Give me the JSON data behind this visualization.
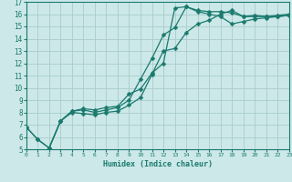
{
  "xlabel": "Humidex (Indice chaleur)",
  "background_color": "#cce8e8",
  "grid_color": "#aacccc",
  "line_color": "#1a7a6e",
  "xlim": [
    0,
    23
  ],
  "ylim": [
    5,
    17
  ],
  "xticks": [
    0,
    1,
    2,
    3,
    4,
    5,
    6,
    7,
    8,
    9,
    10,
    11,
    12,
    13,
    14,
    15,
    16,
    17,
    18,
    19,
    20,
    21,
    22,
    23
  ],
  "yticks": [
    5,
    6,
    7,
    8,
    9,
    10,
    11,
    12,
    13,
    14,
    15,
    16,
    17
  ],
  "lines": [
    {
      "x": [
        0,
        1,
        2,
        3,
        4,
        5,
        6,
        7,
        8,
        9,
        10,
        11,
        12,
        13,
        14,
        15,
        16,
        17,
        18,
        19,
        20,
        21,
        22,
        23
      ],
      "y": [
        6.8,
        5.8,
        5.1,
        7.3,
        8.1,
        8.3,
        8.2,
        8.4,
        8.5,
        9.5,
        9.9,
        11.2,
        12.0,
        16.5,
        16.6,
        16.3,
        16.2,
        16.2,
        16.1,
        15.8,
        15.9,
        15.8,
        15.8,
        15.9
      ]
    },
    {
      "x": [
        0,
        1,
        2,
        3,
        4,
        5,
        6,
        7,
        8,
        9,
        10,
        11,
        12,
        13,
        14,
        15,
        16,
        17,
        18,
        19,
        20,
        21,
        22,
        23
      ],
      "y": [
        6.8,
        5.8,
        5.1,
        7.3,
        8.1,
        8.2,
        8.0,
        8.2,
        8.4,
        9.0,
        10.7,
        12.4,
        14.3,
        14.9,
        16.6,
        16.2,
        16.0,
        15.8,
        15.2,
        15.4,
        15.6,
        15.7,
        15.8,
        15.9
      ]
    },
    {
      "x": [
        2,
        3,
        4,
        5,
        6,
        7,
        8,
        9,
        10,
        11,
        12,
        13,
        14,
        15,
        16,
        17,
        18,
        19,
        20,
        21,
        22,
        23
      ],
      "y": [
        5.1,
        7.3,
        8.0,
        7.9,
        7.8,
        8.0,
        8.1,
        8.6,
        9.2,
        11.1,
        13.0,
        13.2,
        14.5,
        15.2,
        15.5,
        16.0,
        16.3,
        15.8,
        15.8,
        15.8,
        15.9,
        16.0
      ]
    }
  ],
  "xtick_fontsize": 4.5,
  "ytick_fontsize": 5.5,
  "xlabel_fontsize": 6.0,
  "markersize": 2.5,
  "linewidth": 0.9
}
